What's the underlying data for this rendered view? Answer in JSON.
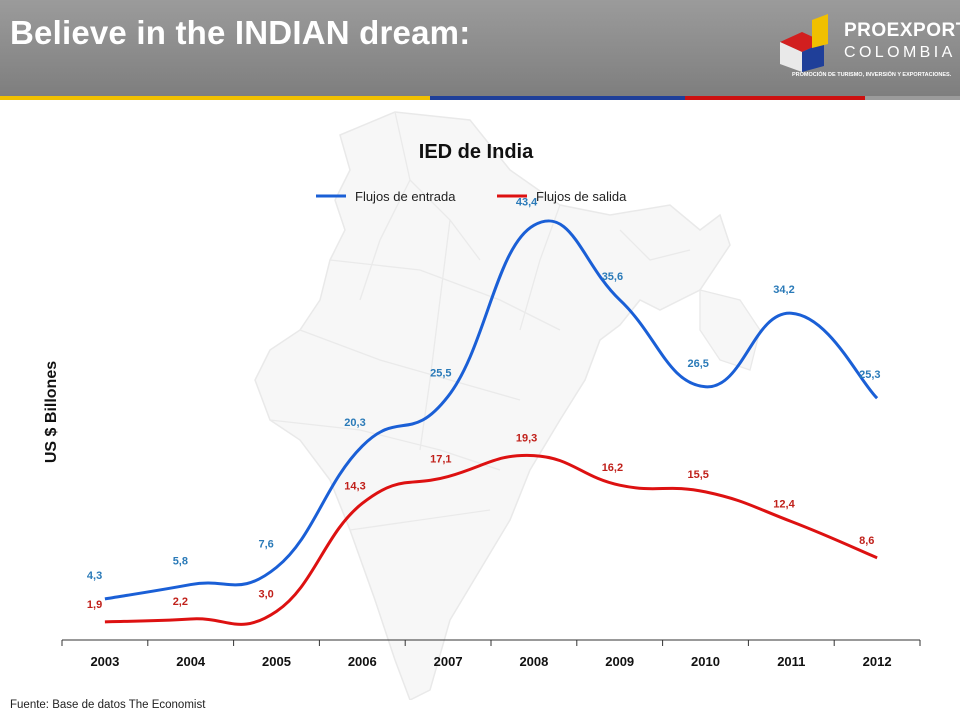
{
  "header": {
    "title": "Believe in the INDIAN dream:",
    "stripe_colors": [
      "#f0c000",
      "#1f3f99",
      "#cc1010",
      "#9b9b9b"
    ]
  },
  "logo": {
    "line1": "PROEXPORT",
    "line2": "COLOMBIA",
    "tagline": "PROMOCIÓN DE TURISMO, INVERSIÓN Y EXPORTACIONES."
  },
  "footer": {
    "source": "Fuente: Base de datos The Economist"
  },
  "chart_data": {
    "type": "line",
    "title": "IED de India",
    "ylabel": "US $ Billones",
    "xlabel": "",
    "categories": [
      "2003",
      "2004",
      "2005",
      "2006",
      "2007",
      "2008",
      "2009",
      "2010",
      "2011",
      "2012"
    ],
    "ylim": [
      0,
      45
    ],
    "grid": false,
    "legend": "top-center",
    "smooth": true,
    "series": [
      {
        "name": "Flujos de entrada",
        "color": "#1a5fd6",
        "label_color": "#2a7ab8",
        "values": [
          4.3,
          5.8,
          7.6,
          20.3,
          25.5,
          43.4,
          35.6,
          26.5,
          34.2,
          25.3
        ],
        "labels": [
          "4,3",
          "5,8",
          "7,6",
          "20,3",
          "25,5",
          "43,4",
          "35,6",
          "26,5",
          "34,2",
          "25,3"
        ]
      },
      {
        "name": "Flujos de salida",
        "color": "#dd1111",
        "label_color": "#c0201a",
        "values": [
          1.9,
          2.2,
          3.0,
          14.3,
          17.1,
          19.3,
          16.2,
          15.5,
          12.4,
          8.6
        ],
        "labels": [
          "1,9",
          "2,2",
          "3,0",
          "14,3",
          "17,1",
          "19,3",
          "16,2",
          "15,5",
          "12,4",
          "8,6"
        ]
      }
    ],
    "background_map": "india-map-silhouette"
  }
}
